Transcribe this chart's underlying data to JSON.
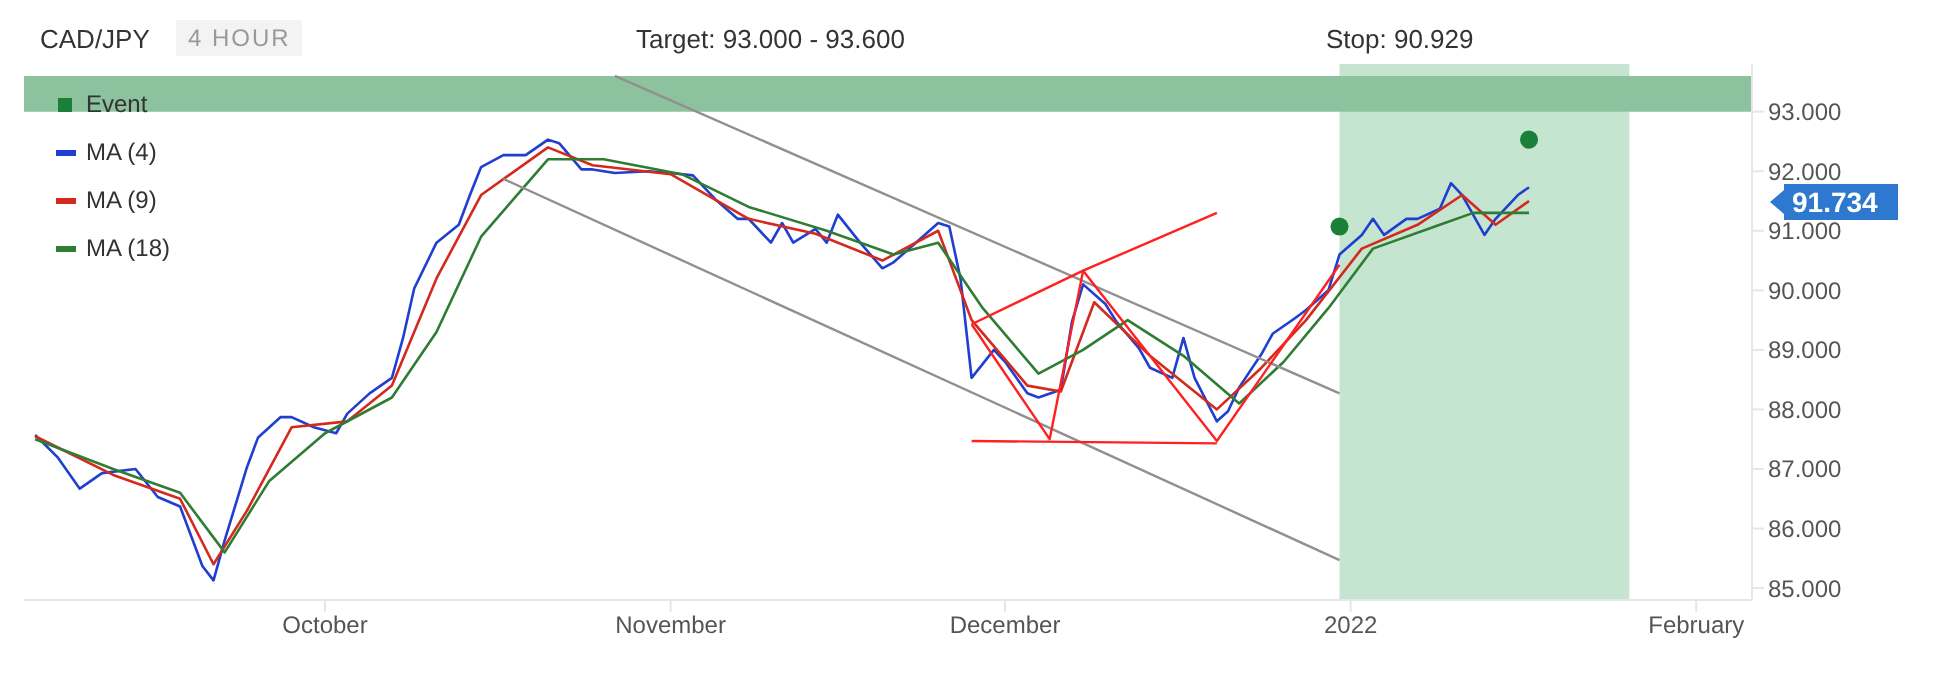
{
  "chart_data": {
    "type": "line",
    "title": "CAD/JPY",
    "subtitle": "4 HOUR",
    "annotations": [
      "Target: 93.000 - 93.600",
      "Stop: 90.929",
      "91.734"
    ],
    "xlim": [
      "2021-09-04",
      "2022-02-06"
    ],
    "xticks": [
      {
        "value": "2021-10-01",
        "label": "October"
      },
      {
        "value": "2021-11-01",
        "label": "November"
      },
      {
        "value": "2021-12-01",
        "label": "December"
      },
      {
        "value": "2022-01-01",
        "label": "2022"
      },
      {
        "value": "2022-02-01",
        "label": "February"
      }
    ],
    "ylim": [
      84.8,
      93.8
    ],
    "yticks": [
      {
        "value": 85,
        "label": "85.000"
      },
      {
        "value": 86,
        "label": "86.000"
      },
      {
        "value": 87,
        "label": "87.000"
      },
      {
        "value": 88,
        "label": "88.000"
      },
      {
        "value": 89,
        "label": "89.000"
      },
      {
        "value": 90,
        "label": "90.000"
      },
      {
        "value": 91,
        "label": "91.000"
      },
      {
        "value": 92,
        "label": "92.000"
      },
      {
        "value": 93,
        "label": "93.000"
      }
    ],
    "legend": "top left",
    "grid": false,
    "bands": [
      {
        "axis": "x",
        "from": "2021-12-31",
        "to": "2022-01-26",
        "color": "#c5e5d0"
      },
      {
        "axis": "y",
        "from": 93.0,
        "to": 93.6,
        "color": "#8cc29e"
      }
    ],
    "series": [
      {
        "name": "Event",
        "type": "scatter",
        "color": "#1a7f37",
        "x": [
          "2021-12-31",
          "2022-01-17"
        ],
        "values": [
          91.07,
          92.53
        ]
      },
      {
        "name": "MA (4)",
        "color": "#1f3fd0",
        "x": [
          "2021-09-05",
          "2021-09-07",
          "2021-09-09",
          "2021-09-11",
          "2021-09-14",
          "2021-09-16",
          "2021-09-18",
          "2021-09-20",
          "2021-09-21",
          "2021-09-22",
          "2021-09-24",
          "2021-09-25",
          "2021-09-27",
          "2021-09-28",
          "2021-09-30",
          "2021-10-02",
          "2021-10-03",
          "2021-10-05",
          "2021-10-07",
          "2021-10-08",
          "2021-10-09",
          "2021-10-11",
          "2021-10-13",
          "2021-10-14",
          "2021-10-15",
          "2021-10-17",
          "2021-10-19",
          "2021-10-21",
          "2021-10-22",
          "2021-10-24",
          "2021-10-25",
          "2021-10-27",
          "2021-10-30",
          "2021-11-01",
          "2021-11-03",
          "2021-11-05",
          "2021-11-07",
          "2021-11-08",
          "2021-11-10",
          "2021-11-11",
          "2021-11-12",
          "2021-11-14",
          "2021-11-15",
          "2021-11-16",
          "2021-11-18",
          "2021-11-20",
          "2021-11-21",
          "2021-11-23",
          "2021-11-25",
          "2021-11-26",
          "2021-11-27",
          "2021-11-28",
          "2021-11-30",
          "2021-12-01",
          "2021-12-03",
          "2021-12-04",
          "2021-12-06",
          "2021-12-07",
          "2021-12-08",
          "2021-12-10",
          "2021-12-11",
          "2021-12-13",
          "2021-12-14",
          "2021-12-16",
          "2021-12-17",
          "2021-12-18",
          "2021-12-20",
          "2021-12-21",
          "2021-12-22",
          "2021-12-24",
          "2021-12-25",
          "2021-12-27",
          "2021-12-28",
          "2021-12-30",
          "2021-12-31",
          "2022-01-02",
          "2022-01-03",
          "2022-01-04",
          "2022-01-06",
          "2022-01-07",
          "2022-01-09",
          "2022-01-10",
          "2022-01-11",
          "2022-01-13",
          "2022-01-14",
          "2022-01-16",
          "2022-01-17"
        ],
        "values": [
          87.57,
          87.2,
          86.67,
          86.93,
          87.0,
          86.53,
          86.37,
          85.37,
          85.13,
          85.8,
          87.03,
          87.53,
          87.87,
          87.87,
          87.7,
          87.6,
          87.93,
          88.27,
          88.53,
          89.2,
          90.03,
          90.8,
          91.1,
          91.6,
          92.07,
          92.27,
          92.27,
          92.53,
          92.47,
          92.03,
          92.03,
          91.97,
          92.0,
          91.97,
          91.93,
          91.53,
          91.2,
          91.2,
          90.8,
          91.13,
          90.8,
          91.03,
          90.8,
          91.27,
          90.8,
          90.37,
          90.47,
          90.8,
          91.13,
          91.07,
          90.2,
          88.53,
          89.0,
          88.8,
          88.27,
          88.2,
          88.33,
          89.47,
          90.1,
          89.77,
          89.47,
          89.03,
          88.7,
          88.53,
          89.2,
          88.53,
          87.8,
          87.97,
          88.37,
          88.93,
          89.27,
          89.53,
          89.67,
          90.0,
          90.6,
          90.93,
          91.2,
          90.93,
          91.2,
          91.2,
          91.37,
          91.8,
          91.6,
          90.93,
          91.2,
          91.6,
          91.73
        ]
      },
      {
        "name": "MA (9)",
        "color": "#d42a1e",
        "x": [
          "2021-09-05",
          "2021-09-12",
          "2021-09-18",
          "2021-09-21",
          "2021-09-24",
          "2021-09-28",
          "2021-10-03",
          "2021-10-07",
          "2021-10-11",
          "2021-10-15",
          "2021-10-21",
          "2021-10-25",
          "2021-11-01",
          "2021-11-08",
          "2021-11-14",
          "2021-11-20",
          "2021-11-25",
          "2021-11-28",
          "2021-12-03",
          "2021-12-06",
          "2021-12-09",
          "2021-12-14",
          "2021-12-20",
          "2021-12-24",
          "2021-12-28",
          "2022-01-02",
          "2022-01-07",
          "2022-01-11",
          "2022-01-14",
          "2022-01-17"
        ],
        "values": [
          87.55,
          86.9,
          86.5,
          85.4,
          86.3,
          87.7,
          87.8,
          88.4,
          90.2,
          91.6,
          92.4,
          92.1,
          91.95,
          91.2,
          90.95,
          90.5,
          91.0,
          89.5,
          88.4,
          88.3,
          89.8,
          88.9,
          88.0,
          88.7,
          89.5,
          90.7,
          91.1,
          91.6,
          91.1,
          91.5
        ]
      },
      {
        "name": "MA (18)",
        "color": "#2e7d32",
        "x": [
          "2021-09-05",
          "2021-09-12",
          "2021-09-18",
          "2021-09-22",
          "2021-09-26",
          "2021-10-01",
          "2021-10-07",
          "2021-10-11",
          "2021-10-15",
          "2021-10-21",
          "2021-10-26",
          "2021-11-02",
          "2021-11-08",
          "2021-11-15",
          "2021-11-21",
          "2021-11-25",
          "2021-11-29",
          "2021-12-04",
          "2021-12-08",
          "2021-12-12",
          "2021-12-17",
          "2021-12-22",
          "2021-12-26",
          "2021-12-30",
          "2022-01-03",
          "2022-01-09",
          "2022-01-12",
          "2022-01-17"
        ],
        "values": [
          87.5,
          87.0,
          86.6,
          85.6,
          86.8,
          87.6,
          88.2,
          89.3,
          90.9,
          92.2,
          92.2,
          91.95,
          91.4,
          91.0,
          90.6,
          90.8,
          89.7,
          88.6,
          89.0,
          89.5,
          88.9,
          88.1,
          88.8,
          89.7,
          90.7,
          91.1,
          91.3,
          91.3
        ]
      },
      {
        "color": "#909090",
        "x": [
          "2021-10-27",
          "2021-12-31"
        ],
        "values": [
          93.6,
          88.27
        ]
      },
      {
        "color": "#909090",
        "x": [
          "2021-10-17",
          "2021-12-31"
        ],
        "values": [
          91.87,
          85.47
        ]
      },
      {
        "color": "#ff2020",
        "x": [
          "2021-11-28",
          "2021-12-08",
          "2021-12-20"
        ],
        "values": [
          89.43,
          90.33,
          91.3
        ]
      },
      {
        "color": "#ff2020",
        "x": [
          "2021-11-28",
          "2021-12-20"
        ],
        "values": [
          87.47,
          87.43
        ]
      },
      {
        "color": "#ff2020",
        "x": [
          "2021-11-28",
          "2021-12-05",
          "2021-12-08",
          "2021-12-20",
          "2021-12-31"
        ],
        "values": [
          89.43,
          87.5,
          90.33,
          87.47,
          90.43
        ]
      }
    ]
  }
}
